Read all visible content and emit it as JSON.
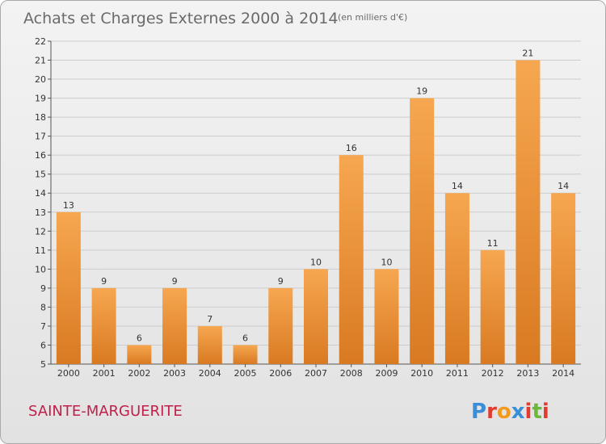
{
  "title": "Achats et Charges Externes 2000 à 2014",
  "subtitle": "(en milliers d'€)",
  "place": "SAINTE-MARGUERITE",
  "logo": {
    "letters": [
      "P",
      "r",
      "o",
      "x",
      "i",
      "t",
      "i"
    ],
    "colors": [
      "#3a8ed8",
      "#e23b2f",
      "#f39a1e",
      "#3a8ed8",
      "#e23b2f",
      "#6bb93a",
      "#e23b2f"
    ]
  },
  "colors": {
    "bar_light": "#f6a750",
    "bar_dark": "#d97a22",
    "grid": "#cccccc",
    "place": "#c0204a"
  },
  "chart_data": {
    "type": "bar",
    "categories": [
      "2000",
      "2001",
      "2002",
      "2003",
      "2004",
      "2005",
      "2006",
      "2007",
      "2008",
      "2009",
      "2010",
      "2011",
      "2012",
      "2013",
      "2014"
    ],
    "values": [
      13,
      9,
      6,
      9,
      7,
      6,
      9,
      10,
      16,
      10,
      19,
      14,
      11,
      21,
      14
    ],
    "title": "Achats et Charges Externes 2000 à 2014",
    "subtitle": "(en milliers d'€)",
    "xlabel": "",
    "ylabel": "",
    "ylim": [
      5,
      22
    ],
    "yticks": [
      5,
      6,
      7,
      8,
      9,
      10,
      11,
      12,
      13,
      14,
      15,
      16,
      17,
      18,
      19,
      20,
      21,
      22
    ],
    "grid": true,
    "legend": "none"
  }
}
